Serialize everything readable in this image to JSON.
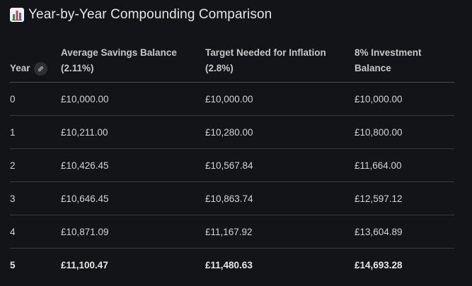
{
  "title": "Year-by-Year Compounding Comparison",
  "title_icon": "bar-chart-icon",
  "table": {
    "headers": {
      "year": "Year",
      "savings_line1": "Average Savings Balance",
      "savings_line2": "(2.11%)",
      "target_line1": "Target Needed for Inflation",
      "target_line2": "(2.8%)",
      "invest_line1": "8% Investment",
      "invest_line2": "Balance"
    },
    "rows": [
      {
        "year": "0",
        "savings": "£10,000.00",
        "target": "£10,000.00",
        "invest": "£10,000.00"
      },
      {
        "year": "1",
        "savings": "£10,211.00",
        "target": "£10,280.00",
        "invest": "£10,800.00"
      },
      {
        "year": "2",
        "savings": "£10,426.45",
        "target": "£10,567.84",
        "invest": "£11,664.00"
      },
      {
        "year": "3",
        "savings": "£10,646.45",
        "target": "£10,863.74",
        "invest": "£12,597.12"
      },
      {
        "year": "4",
        "savings": "£10,871.09",
        "target": "£11,167.92",
        "invest": "£13,604.89"
      },
      {
        "year": "5",
        "savings": "£11,100.47",
        "target": "£11,480.63",
        "invest": "£14,693.28"
      }
    ]
  },
  "colors": {
    "background": "#131417",
    "text": "#e3e3e3",
    "divider": "#3a3b3f"
  }
}
